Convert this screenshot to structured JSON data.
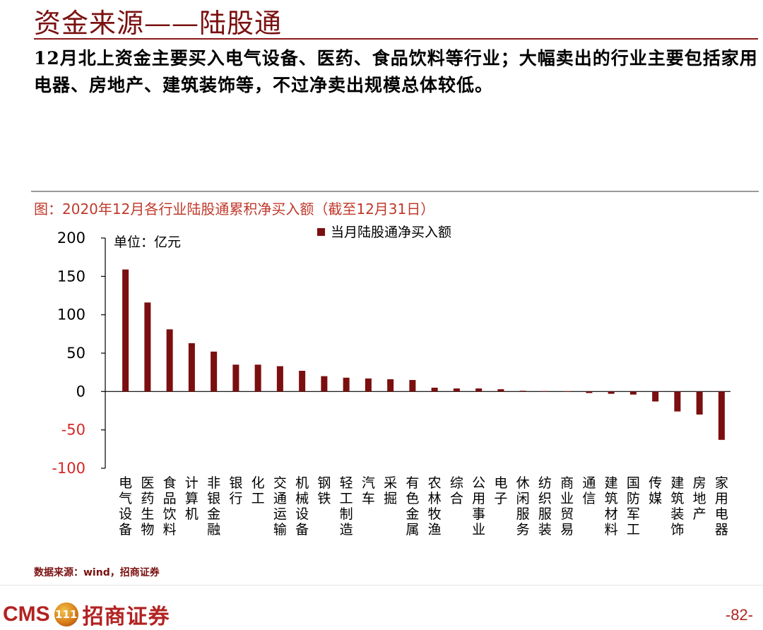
{
  "header": {
    "title": "资金来源——陆股通",
    "subtitle": "12月北上资金主要买入电气设备、医药、食品饮料等行业；大幅卖出的行业主要包括家用电器、房地产、建筑装饰等，不过净卖出规模总体较低。"
  },
  "chart_caption": "图：2020年12月各行业陆股通累积净买入额（截至12月31日）",
  "chart_data": {
    "type": "bar",
    "unit_label": "单位：亿元",
    "legend": "当月陆股通净买入额",
    "legend_position": "top-center",
    "bar_color": "#7b0f0f",
    "ylim": [
      -100,
      200
    ],
    "yticks": [
      "200",
      "150",
      "100",
      "50",
      "0",
      "-50",
      "-100"
    ],
    "ytick_values": [
      200,
      150,
      100,
      50,
      0,
      -50,
      -100
    ],
    "grid": false,
    "categories": [
      "电气设备",
      "医药生物",
      "食品饮料",
      "计算机",
      "非银金融",
      "银行",
      "化工",
      "交通运输",
      "机械设备",
      "钢铁",
      "轻工制造",
      "汽车",
      "采掘",
      "有色金属",
      "农林牧渔",
      "综合",
      "公用事业",
      "电子",
      "休闲服务",
      "纺织服装",
      "商业贸易",
      "通信",
      "建筑材料",
      "国防军工",
      "传媒",
      "建筑装饰",
      "房地产",
      "家用电器"
    ],
    "values": [
      159,
      116,
      81,
      63,
      52,
      35,
      35,
      33,
      27,
      20,
      18,
      17,
      16,
      15,
      5,
      4,
      4,
      3,
      1,
      0.5,
      0.3,
      -2,
      -3,
      -4,
      -13,
      -26,
      -30,
      -63
    ]
  },
  "source": "数据来源：wind，招商证券",
  "footer": {
    "logo_text": "CMS",
    "emblem_text": "111",
    "company": "招商证券",
    "page": "-82-"
  }
}
